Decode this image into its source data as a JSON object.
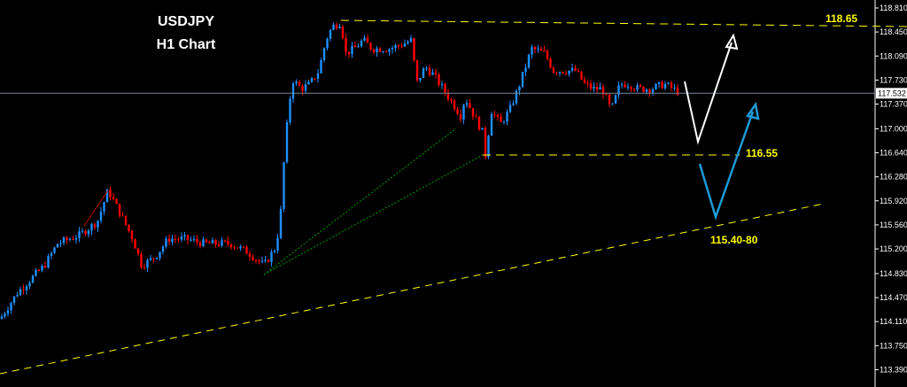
{
  "chart_data": {
    "type": "candlestick",
    "title": "USDJPY",
    "subtitle": "H1 Chart",
    "ylim": [
      113.2,
      118.93
    ],
    "yticks": [
      "118.810",
      "118.450",
      "118.090",
      "117.730",
      "117.370",
      "117.000",
      "116.640",
      "116.280",
      "115.920",
      "115.560",
      "115.200",
      "114.830",
      "114.470",
      "114.110",
      "113.750",
      "113.390"
    ],
    "current_price": "117.532",
    "price_path_anchors": [
      [
        0,
        114.15
      ],
      [
        20,
        114.55
      ],
      [
        50,
        114.95
      ],
      [
        65,
        115.28
      ],
      [
        90,
        115.41
      ],
      [
        110,
        115.61
      ],
      [
        122,
        116.08
      ],
      [
        135,
        115.75
      ],
      [
        150,
        115.35
      ],
      [
        160,
        114.95
      ],
      [
        175,
        115.08
      ],
      [
        190,
        115.35
      ],
      [
        210,
        115.35
      ],
      [
        230,
        115.28
      ],
      [
        260,
        115.28
      ],
      [
        280,
        115.15
      ],
      [
        298,
        114.95
      ],
      [
        310,
        115.2
      ],
      [
        316,
        115.55
      ],
      [
        320,
        116.41
      ],
      [
        325,
        117.2
      ],
      [
        330,
        117.74
      ],
      [
        340,
        117.6
      ],
      [
        350,
        117.67
      ],
      [
        360,
        117.87
      ],
      [
        368,
        118.33
      ],
      [
        375,
        118.53
      ],
      [
        385,
        118.6
      ],
      [
        390,
        118.13
      ],
      [
        400,
        118.2
      ],
      [
        410,
        118.33
      ],
      [
        420,
        118.2
      ],
      [
        440,
        118.2
      ],
      [
        455,
        118.27
      ],
      [
        465,
        118.33
      ],
      [
        470,
        117.67
      ],
      [
        480,
        117.93
      ],
      [
        490,
        117.8
      ],
      [
        500,
        117.6
      ],
      [
        510,
        117.4
      ],
      [
        520,
        117.2
      ],
      [
        525,
        117.47
      ],
      [
        535,
        117.2
      ],
      [
        545,
        116.94
      ],
      [
        548,
        116.61
      ],
      [
        555,
        117.27
      ],
      [
        565,
        117.07
      ],
      [
        575,
        117.27
      ],
      [
        585,
        117.6
      ],
      [
        595,
        118.0
      ],
      [
        600,
        118.2
      ],
      [
        615,
        118.13
      ],
      [
        625,
        117.87
      ],
      [
        640,
        117.87
      ],
      [
        650,
        117.87
      ],
      [
        660,
        117.67
      ],
      [
        670,
        117.6
      ],
      [
        680,
        117.6
      ],
      [
        690,
        117.27
      ],
      [
        700,
        117.67
      ],
      [
        710,
        117.67
      ],
      [
        720,
        117.6
      ],
      [
        735,
        117.6
      ],
      [
        750,
        117.67
      ],
      [
        760,
        117.6
      ],
      [
        768,
        117.53
      ]
    ],
    "levels": [
      {
        "label": "118.65",
        "price": 118.65,
        "style": "dashed",
        "color": "#ffff00"
      },
      {
        "label": "116.55",
        "price": 116.6,
        "style": "dashed",
        "color": "#ffff00"
      },
      {
        "label": "115.40-80",
        "style": "dashed trendline",
        "color": "#ffff00"
      }
    ],
    "colors": {
      "bull": "#1e90ff",
      "bear": "#ff0000",
      "background": "#000000",
      "axis": "#ffffff",
      "price_line": "#778899",
      "white_arrow": "#ffffff",
      "blue_arrow": "#1e9ad6"
    }
  }
}
